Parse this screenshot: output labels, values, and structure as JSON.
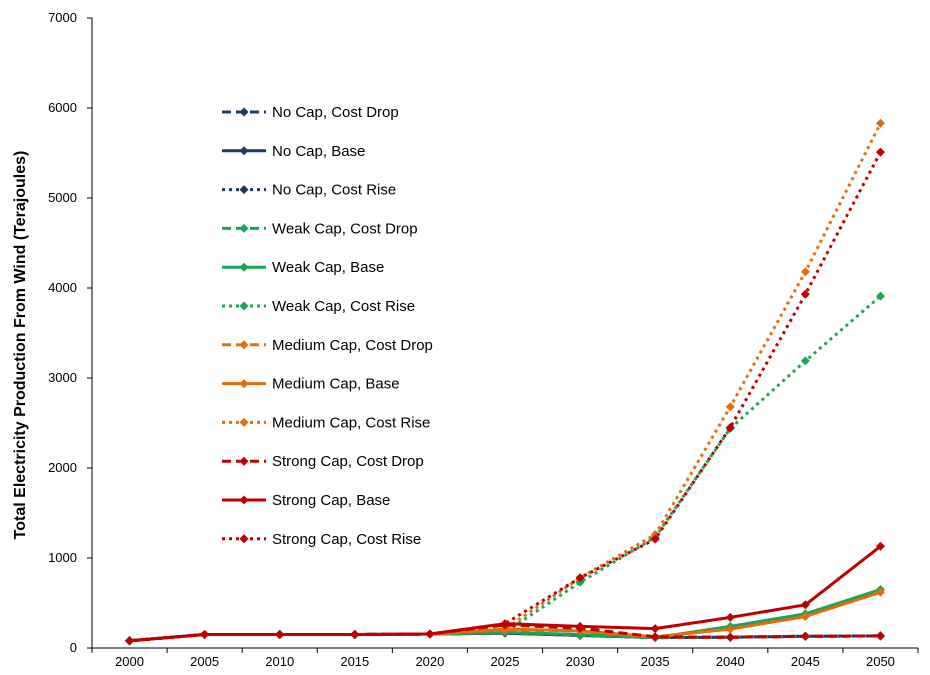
{
  "chart_data": {
    "type": "line",
    "title": "",
    "xlabel": "",
    "ylabel": "Total Electricity Production From Wind (Terajoules)",
    "categories": [
      "2000",
      "2005",
      "2010",
      "2015",
      "2020",
      "2025",
      "2030",
      "2035",
      "2040",
      "2045",
      "2050"
    ],
    "ylim": [
      0,
      7000
    ],
    "yticks": [
      0,
      1000,
      2000,
      3000,
      4000,
      5000,
      6000,
      7000
    ],
    "grid": false,
    "legend_placement": "upper-left inside plot",
    "series": [
      {
        "name": "No Cap, Cost Drop",
        "color": "#1f3b63",
        "dash": "dashed",
        "values": [
          80,
          150,
          150,
          150,
          155,
          165,
          140,
          115,
          120,
          130,
          135
        ]
      },
      {
        "name": "No Cap, Base",
        "color": "#1f3b63",
        "dash": "solid",
        "values": [
          80,
          150,
          150,
          150,
          155,
          165,
          140,
          115,
          120,
          130,
          135
        ]
      },
      {
        "name": "No Cap, Cost Rise",
        "color": "#1f3b63",
        "dash": "dotted",
        "values": [
          80,
          150,
          150,
          150,
          155,
          165,
          140,
          115,
          120,
          130,
          135
        ]
      },
      {
        "name": "Weak Cap, Cost Drop",
        "color": "#1aa655",
        "dash": "dashed",
        "values": [
          80,
          150,
          150,
          150,
          155,
          170,
          145,
          115,
          120,
          130,
          135
        ]
      },
      {
        "name": "Weak Cap, Base",
        "color": "#1aa655",
        "dash": "solid",
        "values": [
          80,
          150,
          150,
          150,
          155,
          175,
          150,
          115,
          240,
          380,
          650
        ]
      },
      {
        "name": "Weak Cap, Cost Rise",
        "color": "#1aa655",
        "dash": "dotted",
        "values": [
          80,
          150,
          150,
          150,
          155,
          175,
          730,
          1230,
          2440,
          3190,
          3910
        ]
      },
      {
        "name": "Medium Cap, Cost Drop",
        "color": "#e46c0a",
        "dash": "dashed",
        "values": [
          80,
          150,
          150,
          150,
          155,
          200,
          190,
          120,
          120,
          130,
          135
        ]
      },
      {
        "name": "Medium Cap, Base",
        "color": "#e46c0a",
        "dash": "solid",
        "values": [
          80,
          150,
          150,
          150,
          155,
          210,
          190,
          125,
          210,
          350,
          620
        ]
      },
      {
        "name": "Medium Cap, Cost Rise",
        "color": "#e46c0a",
        "dash": "dotted",
        "values": [
          80,
          150,
          150,
          150,
          155,
          210,
          780,
          1260,
          2680,
          4180,
          5830
        ]
      },
      {
        "name": "Strong Cap, Cost Drop",
        "color": "#c00000",
        "dash": "dashed",
        "values": [
          80,
          150,
          150,
          150,
          155,
          255,
          220,
          125,
          120,
          130,
          135
        ]
      },
      {
        "name": "Strong Cap, Base",
        "color": "#c00000",
        "dash": "solid",
        "values": [
          80,
          150,
          150,
          150,
          155,
          270,
          240,
          215,
          340,
          480,
          1130
        ]
      },
      {
        "name": "Strong Cap, Cost Rise",
        "color": "#c00000",
        "dash": "dotted",
        "values": [
          80,
          150,
          150,
          150,
          155,
          270,
          780,
          1210,
          2450,
          3930,
          5510
        ]
      }
    ]
  }
}
